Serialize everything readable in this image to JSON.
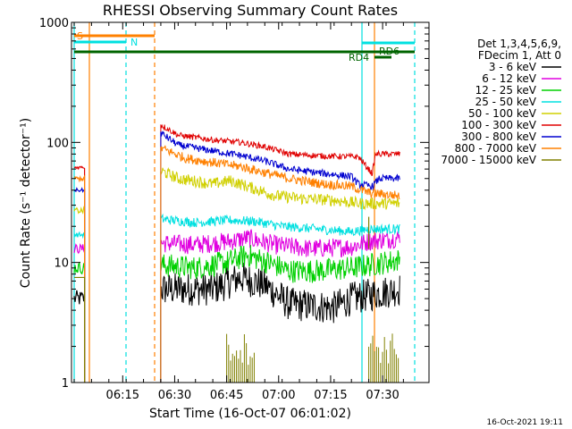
{
  "chart_data": {
    "type": "line",
    "title": "RHESSI Observing Summary Count Rates",
    "xlabel": "Start Time (16-Oct-07 06:01:02)",
    "ylabel": "Count Rate (s⁻¹ detector⁻¹)",
    "yscale": "log",
    "ylim": [
      1,
      1000
    ],
    "xlim_min": [
      0,
      98
    ],
    "x_ticks": [
      {
        "m": 14,
        "label": "06:15"
      },
      {
        "m": 29,
        "label": "06:30"
      },
      {
        "m": 44,
        "label": "06:45"
      },
      {
        "m": 59,
        "label": "07:00"
      },
      {
        "m": 74,
        "label": "07:15"
      },
      {
        "m": 89,
        "label": "07:30"
      }
    ],
    "y_ticks": [
      {
        "v": 1,
        "label": "1"
      },
      {
        "v": 10,
        "label": "10"
      },
      {
        "v": 100,
        "label": "100"
      },
      {
        "v": 1000,
        "label": "1000"
      }
    ],
    "legend": {
      "position": "right",
      "header": [
        "Det 1,3,4,5,6,9,",
        "FDecim 1, Att 0"
      ]
    },
    "series": [
      {
        "name": "3 - 6 keV",
        "color": "#000000",
        "values": [
          [
            0,
            5
          ],
          [
            3,
            5
          ],
          [
            25,
            6
          ],
          [
            40,
            6
          ],
          [
            48,
            7.5
          ],
          [
            55,
            6.5
          ],
          [
            62,
            4.5
          ],
          [
            75,
            4.2
          ],
          [
            80,
            5
          ],
          [
            87,
            5.5
          ],
          [
            94,
            6
          ]
        ]
      },
      {
        "name": "6 - 12 keV",
        "color": "#e000e0",
        "values": [
          [
            0,
            13
          ],
          [
            3,
            13
          ],
          [
            25,
            14.5
          ],
          [
            35,
            14
          ],
          [
            45,
            15
          ],
          [
            50,
            16
          ],
          [
            58,
            14
          ],
          [
            68,
            13
          ],
          [
            80,
            13.5
          ],
          [
            85,
            15
          ],
          [
            94,
            16
          ]
        ]
      },
      {
        "name": "12 - 25 keV",
        "color": "#00d000",
        "values": [
          [
            0,
            9
          ],
          [
            3,
            9
          ],
          [
            25,
            9.5
          ],
          [
            35,
            9
          ],
          [
            44,
            10
          ],
          [
            50,
            11.5
          ],
          [
            56,
            10
          ],
          [
            62,
            8.5
          ],
          [
            70,
            8.5
          ],
          [
            80,
            9
          ],
          [
            85,
            9.5
          ],
          [
            94,
            10.5
          ]
        ]
      },
      {
        "name": "25 - 50 keV",
        "color": "#00e0e0",
        "values": [
          [
            0,
            17
          ],
          [
            3,
            17
          ],
          [
            25,
            23
          ],
          [
            35,
            21.5
          ],
          [
            45,
            22.5
          ],
          [
            52,
            22
          ],
          [
            60,
            20
          ],
          [
            70,
            19
          ],
          [
            80,
            18
          ],
          [
            85,
            19
          ],
          [
            94,
            19
          ]
        ]
      },
      {
        "name": "50 - 100 keV",
        "color": "#d0d000",
        "values": [
          [
            0,
            27
          ],
          [
            3,
            27
          ],
          [
            25,
            58
          ],
          [
            30,
            50
          ],
          [
            40,
            45
          ],
          [
            45,
            48
          ],
          [
            50,
            43
          ],
          [
            58,
            36
          ],
          [
            66,
            34
          ],
          [
            75,
            33
          ],
          [
            82,
            31
          ]
        ]
      },
      {
        "name": "100 - 300 keV",
        "color": "#e00000",
        "values": [
          [
            0,
            62
          ],
          [
            3,
            62
          ],
          [
            25,
            140
          ],
          [
            30,
            115
          ],
          [
            40,
            105
          ],
          [
            48,
            100
          ],
          [
            55,
            92
          ],
          [
            62,
            80
          ],
          [
            72,
            77
          ],
          [
            80,
            76
          ],
          [
            82,
            76
          ],
          [
            86,
            55
          ],
          [
            87,
            80
          ],
          [
            94,
            80
          ]
        ]
      },
      {
        "name": "300 - 800 keV",
        "color": "#0000d0",
        "values": [
          [
            0,
            40
          ],
          [
            3,
            40
          ],
          [
            25,
            120
          ],
          [
            30,
            95
          ],
          [
            40,
            85
          ],
          [
            48,
            78
          ],
          [
            55,
            70
          ],
          [
            62,
            60
          ],
          [
            70,
            56
          ],
          [
            80,
            52
          ],
          [
            82,
            45
          ],
          [
            86,
            43
          ],
          [
            88,
            50
          ],
          [
            94,
            50
          ]
        ]
      },
      {
        "name": "800 - 7000 keV",
        "color": "#ff8000",
        "values": [
          [
            0,
            50
          ],
          [
            3,
            50
          ],
          [
            25,
            90
          ],
          [
            32,
            74
          ],
          [
            40,
            68
          ],
          [
            48,
            63
          ],
          [
            55,
            56
          ],
          [
            62,
            50
          ],
          [
            72,
            45
          ],
          [
            80,
            43
          ],
          [
            85,
            38
          ],
          [
            94,
            36
          ]
        ]
      },
      {
        "name": "7000 - 15000 keV",
        "color": "#808000",
        "values": [
          [
            0,
            7.5
          ],
          [
            3,
            7.5
          ],
          [
            44,
            1.5
          ],
          [
            52,
            1.5
          ],
          [
            85,
            1.5
          ],
          [
            94,
            1.5
          ]
        ]
      }
    ],
    "annotations": [
      {
        "text": "S",
        "color": "#ff8000"
      },
      {
        "text": "N",
        "color": "#00e0e0"
      },
      {
        "text": "RD4",
        "color": "#006400"
      },
      {
        "text": "RD6",
        "color": "#006400"
      }
    ]
  },
  "footer": {
    "timestamp": "16-Oct-2021 19:11"
  }
}
